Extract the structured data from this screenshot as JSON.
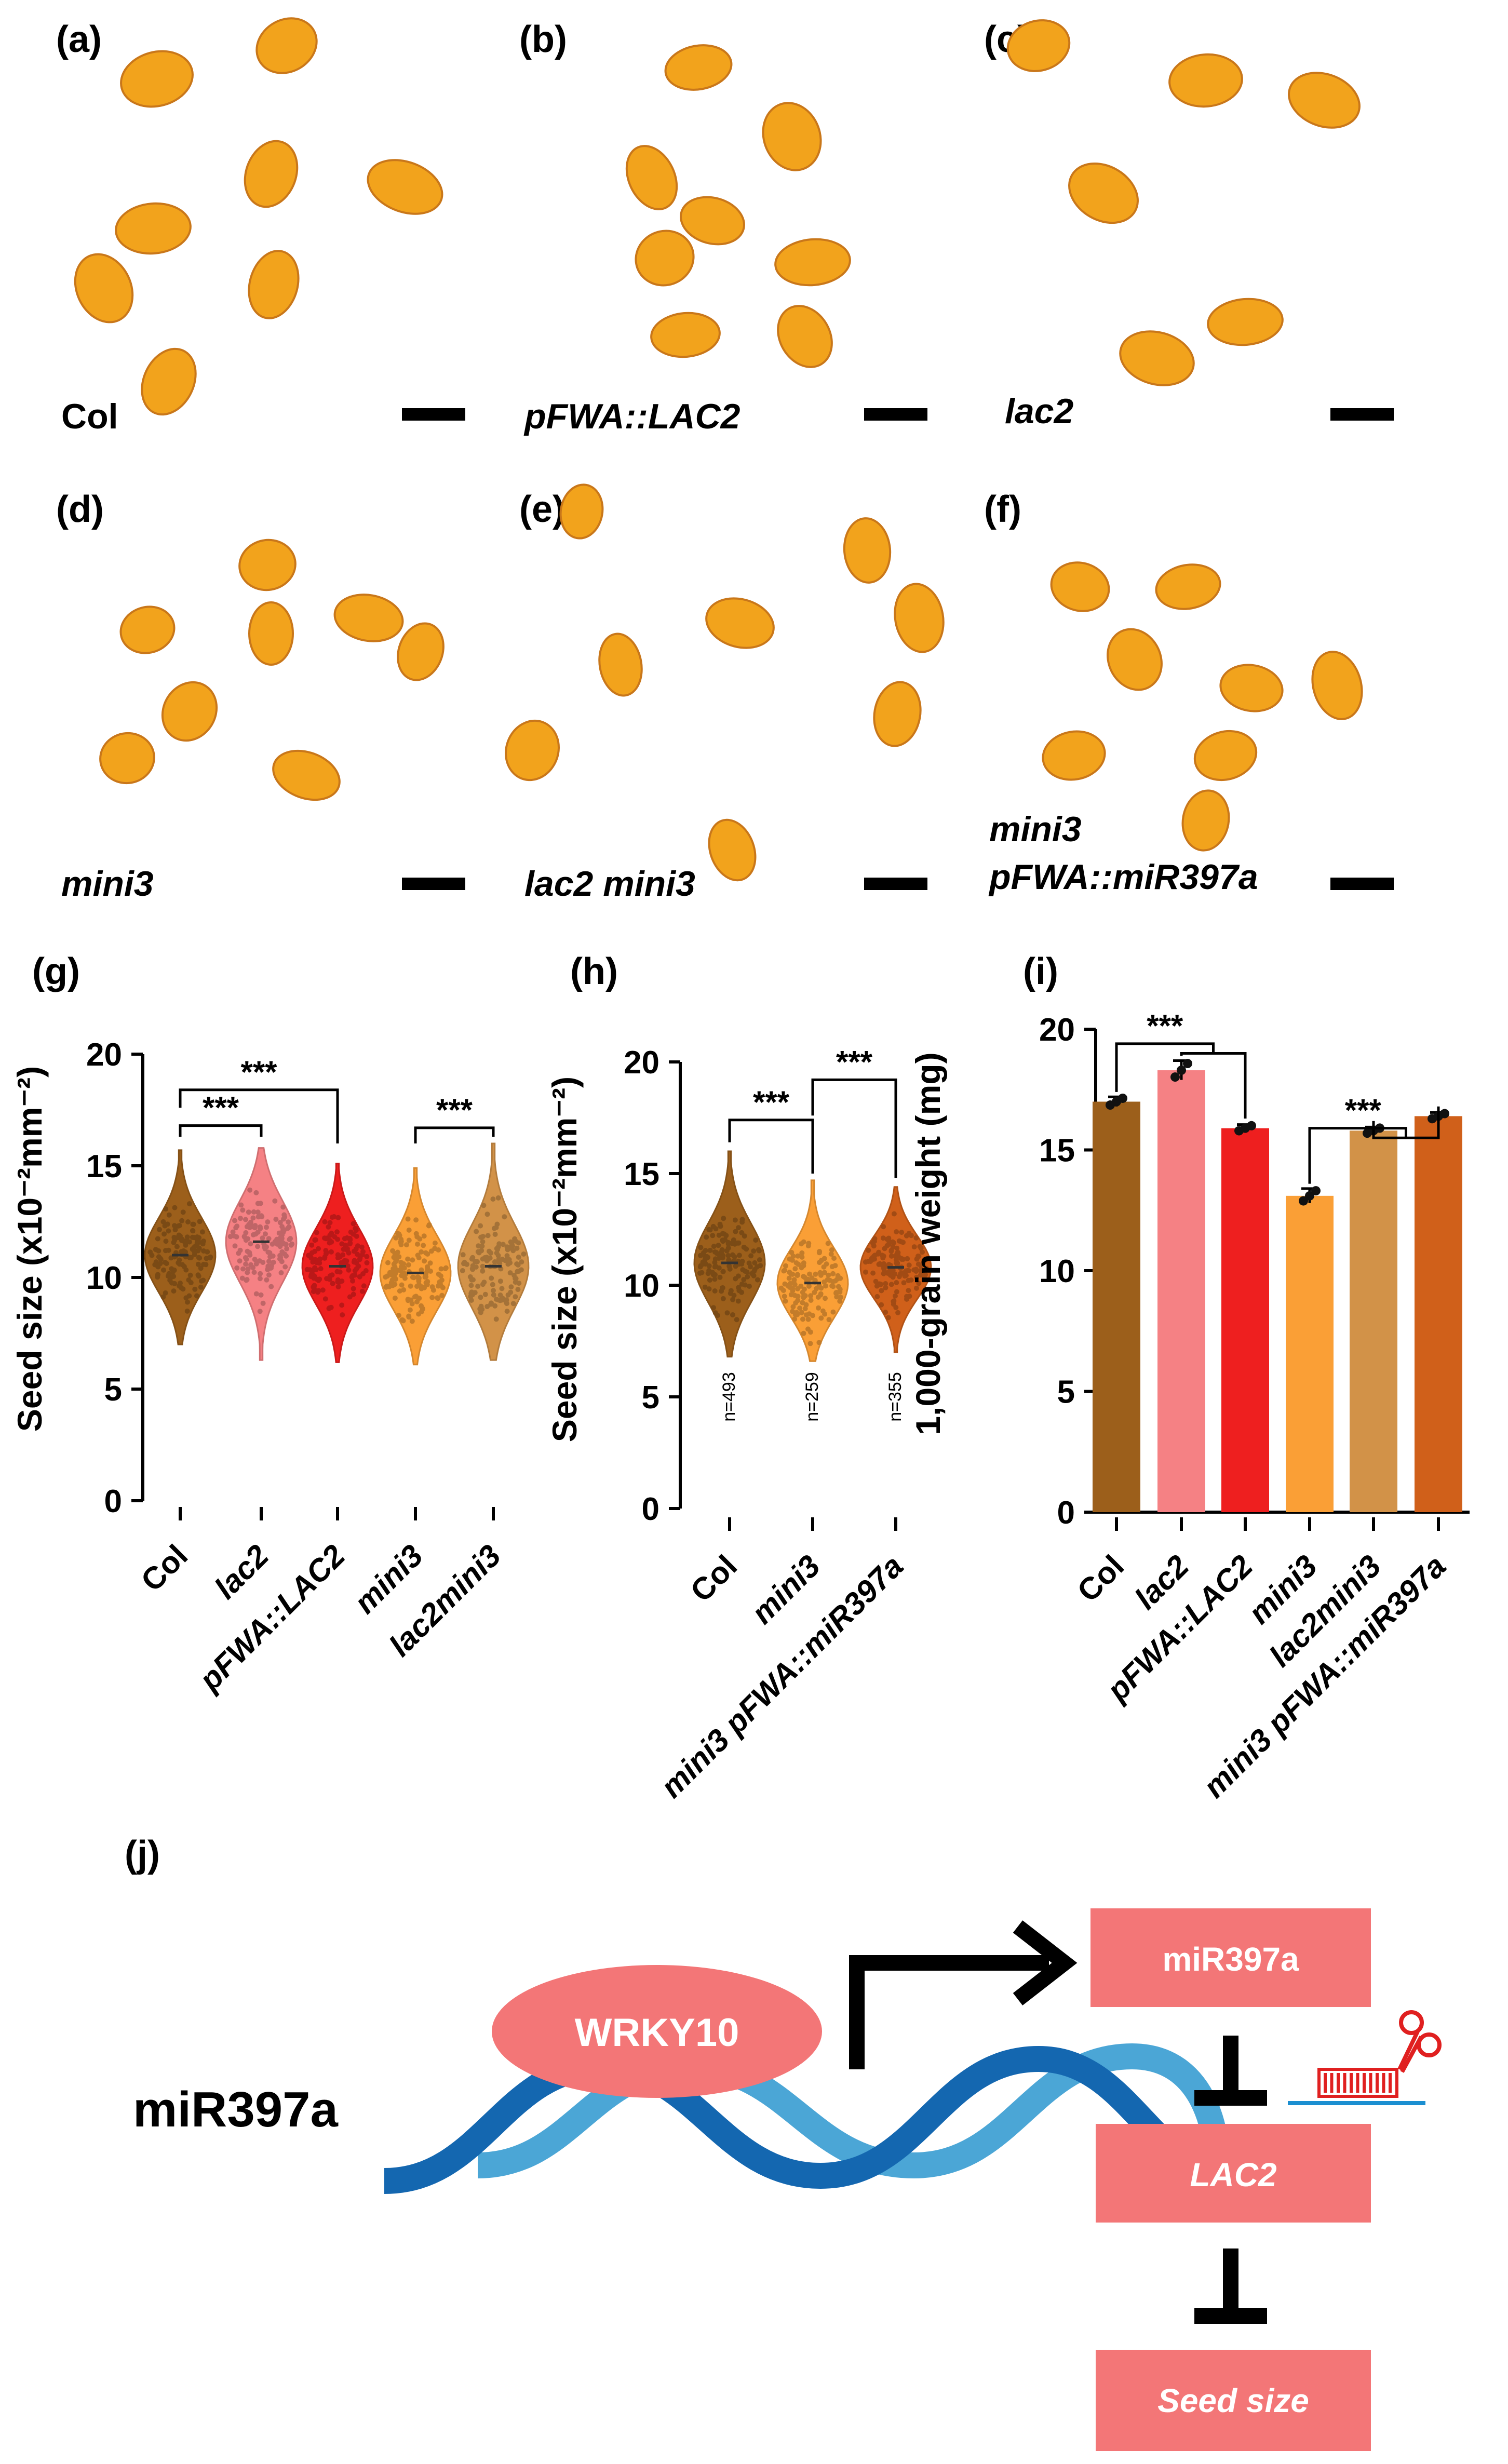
{
  "panels": {
    "a": {
      "letter": "(a)",
      "genotype": "Col"
    },
    "b": {
      "letter": "(b)",
      "genotype": "pFWA::LAC2"
    },
    "c": {
      "letter": "(c)",
      "genotype": "lac2"
    },
    "d": {
      "letter": "(d)",
      "genotype": "mini3"
    },
    "e": {
      "letter": "(e)",
      "genotype": "lac2 mini3"
    },
    "f": {
      "letter": "(f)",
      "genotype_line1": "mini3",
      "genotype_line2": "pFWA::miR397a"
    }
  },
  "colors": {
    "seed": "#f2a31c",
    "seed_dark": "#c9771a",
    "Col": "#9c5f1b",
    "lac2": "#f58184",
    "pFWA_LAC2": "#ee1f1f",
    "mini3": "#fa9f36",
    "lac2mini3": "#d29248",
    "mini3_pFWA_miR397a": "#d0601a",
    "box": "#f37677",
    "dna_dark": "#1467b0",
    "dna_light": "#4ba6d6"
  },
  "chart_data": [
    {
      "panel": "(g)",
      "type": "violin",
      "ylabel": "Seed size (x10⁻²mm⁻²)",
      "ylim": [
        0,
        20
      ],
      "yticks": [
        "0",
        "5",
        "10",
        "15",
        "20"
      ],
      "categories": [
        "Col",
        "lac2",
        "pFWA::LAC2",
        "mini3",
        "lac2mini3"
      ],
      "medians": [
        11.0,
        11.6,
        10.5,
        10.2,
        10.5
      ],
      "mins": [
        7.0,
        6.3,
        6.2,
        6.1,
        6.3
      ],
      "maxs": [
        15.7,
        15.8,
        15.1,
        14.9,
        16.0
      ],
      "significance": [
        {
          "pair": [
            "Col",
            "lac2"
          ],
          "label": "***"
        },
        {
          "pair": [
            "Col",
            "pFWA::LAC2"
          ],
          "label": "***"
        },
        {
          "pair": [
            "mini3",
            "lac2mini3"
          ],
          "label": "***"
        }
      ]
    },
    {
      "panel": "(h)",
      "type": "violin",
      "ylabel": "Seed size (x10⁻²mm⁻²)",
      "ylim": [
        0,
        20
      ],
      "yticks": [
        "0",
        "5",
        "10",
        "15",
        "20"
      ],
      "categories": [
        "Col",
        "mini3",
        "mini3 pFWA::miR397a"
      ],
      "medians": [
        11.0,
        10.1,
        10.8
      ],
      "mins": [
        6.8,
        6.6,
        7.0
      ],
      "maxs": [
        16.0,
        14.7,
        14.4
      ],
      "n_labels": [
        "n=493",
        "n=259",
        "n=355"
      ],
      "significance": [
        {
          "pair": [
            "Col",
            "mini3"
          ],
          "label": "***"
        },
        {
          "pair": [
            "mini3",
            "mini3 pFWA::miR397a"
          ],
          "label": "***"
        }
      ]
    },
    {
      "panel": "(i)",
      "type": "bar",
      "ylabel": "1,000-grain weight (mg)",
      "ylim": [
        0,
        20
      ],
      "yticks": [
        "0",
        "5",
        "10",
        "15",
        "20"
      ],
      "categories": [
        "Col",
        "lac2",
        "pFWA::LAC2",
        "mini3",
        "lac2mini3",
        "mini3 pFWA::miR397a"
      ],
      "values": [
        17.0,
        18.3,
        15.9,
        13.1,
        15.8,
        16.4
      ],
      "errors": [
        0.2,
        0.4,
        0.15,
        0.3,
        0.15,
        0.15
      ],
      "significance": [
        {
          "from": "Col",
          "to": [
            "lac2",
            "pFWA::LAC2"
          ],
          "label": "***"
        },
        {
          "from": "mini3",
          "to": [
            "lac2mini3",
            "mini3 pFWA::miR397a"
          ],
          "label": "***"
        }
      ]
    }
  ],
  "model": {
    "letter": "(j)",
    "title": "miR397a",
    "tf": "WRKY10",
    "box1": "miR397a",
    "box2": "LAC2",
    "box3": "Seed size"
  }
}
